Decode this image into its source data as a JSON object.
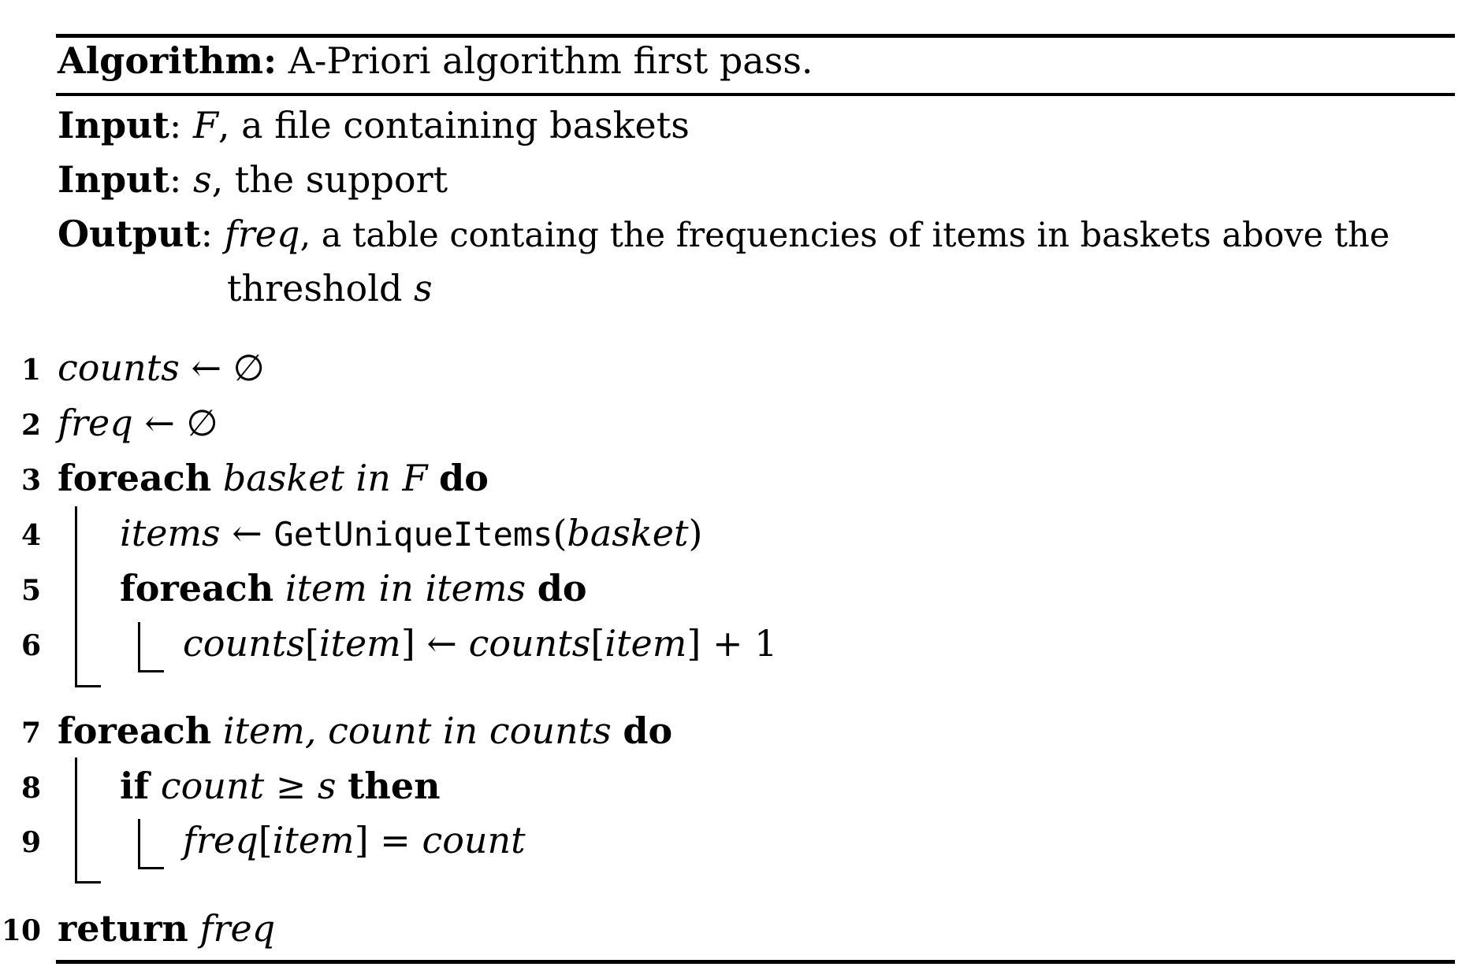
{
  "header": {
    "label": "Algorithm:",
    "title": "A-Priori algorithm first pass."
  },
  "io": [
    {
      "label": "Input",
      "var": "F",
      "text": ", a file containing baskets"
    },
    {
      "label": "Input",
      "var": "s",
      "text": ", the support"
    },
    {
      "label": "Output",
      "var": "freq",
      "text": ", a table containg the frequencies of items in baskets above the",
      "cont_text": "threshold",
      "cont_var": "s"
    }
  ],
  "lines": {
    "l1": {
      "num": "1",
      "var": "counts",
      "op": "←",
      "val": "∅"
    },
    "l2": {
      "num": "2",
      "var": "freq",
      "op": "←",
      "val": "∅"
    },
    "l3": {
      "num": "3",
      "kw1": "foreach",
      "expr": "basket in F",
      "kw2": "do"
    },
    "l4": {
      "num": "4",
      "var": "items",
      "op": "←",
      "func": "GetUniqueItems",
      "open": "(",
      "arg": "basket",
      "close": ")"
    },
    "l5": {
      "num": "5",
      "kw1": "foreach",
      "expr": "item in items",
      "kw2": "do"
    },
    "l6": {
      "num": "6",
      "a": "counts",
      "b1": "[",
      "b": "item",
      "b2": "]",
      "op": "←",
      "c": "counts",
      "d1": "[",
      "d": "item",
      "d2": "]",
      "plus": "+ 1"
    },
    "l7": {
      "num": "7",
      "kw1": "foreach",
      "expr": "item, count in counts",
      "kw2": "do"
    },
    "l8": {
      "num": "8",
      "kw1": "if",
      "expr": "count",
      "op": "≥",
      "expr2": "s",
      "kw2": "then"
    },
    "l9": {
      "num": "9",
      "a": "freq",
      "b1": "[",
      "b": "item",
      "b2": "]",
      "op": "=",
      "c": "count"
    },
    "l10": {
      "num": "10",
      "kw": "return",
      "var": "freq"
    }
  }
}
